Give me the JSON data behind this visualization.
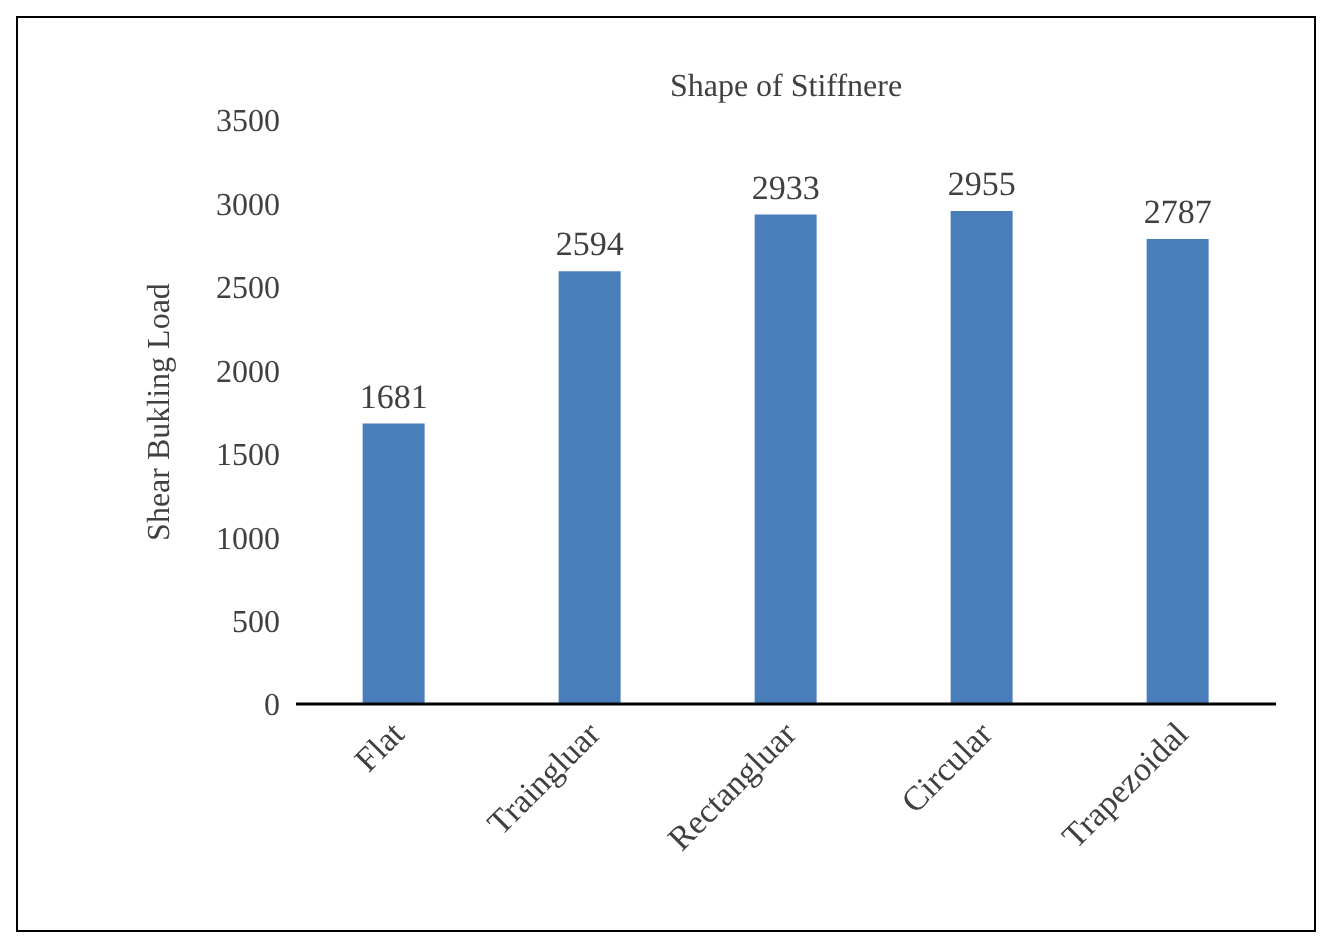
{
  "chart_data": {
    "type": "bar",
    "title": "Shape of Stiffnere",
    "ylabel": "Shear Bukling Load",
    "categories": [
      "Flat",
      "Traingluar",
      "Rectangluar",
      "Circular",
      "Trapezoidal"
    ],
    "values": [
      1681,
      2594,
      2933,
      2955,
      2787
    ],
    "color": "#4a7ebb",
    "ylim": [
      0,
      3500
    ],
    "yticks": [
      0,
      500,
      1000,
      1500,
      2000,
      2500,
      3000,
      3500
    ],
    "grid": false,
    "legend": false,
    "data_labels": true
  }
}
